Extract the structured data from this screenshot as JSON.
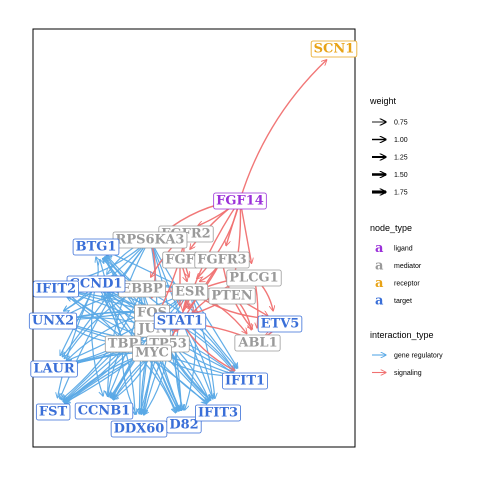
{
  "colors": {
    "ligand": "#9b30d9",
    "mediator": "#9a9a9a",
    "receptor": "#e8a317",
    "target": "#3a6fd8",
    "gene_regulatory": "#5aa9e6",
    "signaling": "#f07070",
    "panel_border": "#000000"
  },
  "legend": {
    "weight": {
      "title": "weight",
      "items": [
        {
          "label": "0.75",
          "value": 0.75
        },
        {
          "label": "1.00",
          "value": 1.0
        },
        {
          "label": "1.25",
          "value": 1.25
        },
        {
          "label": "1.50",
          "value": 1.5
        },
        {
          "label": "1.75",
          "value": 1.75
        }
      ]
    },
    "node_type": {
      "title": "node_type",
      "key_glyph": "a",
      "items": [
        {
          "label": "ligand",
          "type": "ligand"
        },
        {
          "label": "mediator",
          "type": "mediator"
        },
        {
          "label": "receptor",
          "type": "receptor"
        },
        {
          "label": "target",
          "type": "target"
        }
      ]
    },
    "interaction_type": {
      "title": "interaction_type",
      "items": [
        {
          "label": "gene regulatory",
          "type": "gene_regulatory"
        },
        {
          "label": "signaling",
          "type": "signaling"
        }
      ]
    }
  },
  "nodes": [
    {
      "id": "SCN1",
      "label": "SCN1",
      "type": "receptor"
    },
    {
      "id": "FGF14",
      "label": "FGF14",
      "type": "ligand"
    },
    {
      "id": "FGFR2",
      "label": "FGFR2",
      "type": "mediator"
    },
    {
      "id": "RPS6KA3",
      "label": "RPS6KA3",
      "type": "mediator"
    },
    {
      "id": "FGF",
      "label": "FGF",
      "type": "mediator"
    },
    {
      "id": "FGFR3",
      "label": "FGFR3",
      "type": "mediator"
    },
    {
      "id": "PLCG1",
      "label": "PLCG1",
      "type": "mediator"
    },
    {
      "id": "EBBP",
      "label": "EBBP",
      "type": "mediator"
    },
    {
      "id": "ESR",
      "label": "ESR",
      "type": "mediator"
    },
    {
      "id": "PTEN",
      "label": "PTEN",
      "type": "mediator"
    },
    {
      "id": "FOS",
      "label": "FOS",
      "type": "mediator"
    },
    {
      "id": "JUN",
      "label": "JUN",
      "type": "mediator"
    },
    {
      "id": "TBP",
      "label": "TBP",
      "type": "mediator"
    },
    {
      "id": "TP53",
      "label": "TP53",
      "type": "mediator"
    },
    {
      "id": "MYC",
      "label": "MYC",
      "type": "mediator"
    },
    {
      "id": "ABL1",
      "label": "ABL1",
      "type": "mediator"
    },
    {
      "id": "STAT1",
      "label": "STAT1",
      "type": "target"
    },
    {
      "id": "BTG1",
      "label": "BTG1",
      "type": "target"
    },
    {
      "id": "CCND1",
      "label": "CCND1",
      "type": "target"
    },
    {
      "id": "IFIT2",
      "label": "IFIT2",
      "type": "target"
    },
    {
      "id": "UNX2",
      "label": "UNX2",
      "type": "target"
    },
    {
      "id": "LAUR",
      "label": "LAUR",
      "type": "target"
    },
    {
      "id": "FST",
      "label": "FST",
      "type": "target"
    },
    {
      "id": "CCNB1",
      "label": "CCNB1",
      "type": "target"
    },
    {
      "id": "DDX60",
      "label": "DDX60",
      "type": "target"
    },
    {
      "id": "CD82",
      "label": "D82",
      "type": "target"
    },
    {
      "id": "IFIT3",
      "label": "IFIT3",
      "type": "target"
    },
    {
      "id": "IFIT1",
      "label": "IFIT1",
      "type": "target"
    },
    {
      "id": "ETV5",
      "label": "ETV5",
      "type": "target"
    }
  ]
}
